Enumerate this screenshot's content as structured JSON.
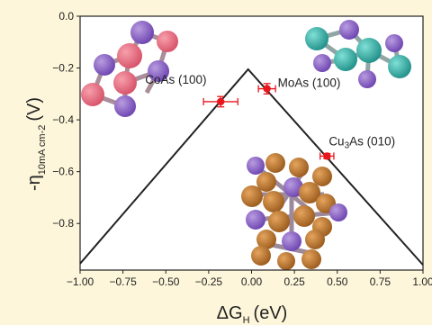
{
  "chart_data": {
    "type": "scatter",
    "xlabel": "ΔG",
    "xlabel_sub": "H",
    "xlabel_unit": "(eV)",
    "ylabel_prefix": "-η",
    "ylabel_sub": "10mA cm-2",
    "ylabel_unit": "(V)",
    "xlim": [
      -1.0,
      1.0
    ],
    "ylim": [
      -0.98,
      0.0
    ],
    "x_ticks": [
      "−1.00",
      "−0.75",
      "−0.50",
      "−0.25",
      "0.00",
      "0.25",
      "0.50",
      "0.75",
      "1.00"
    ],
    "x_tick_values": [
      -1.0,
      -0.75,
      -0.5,
      -0.25,
      0.0,
      0.25,
      0.5,
      0.75,
      1.0
    ],
    "y_ticks": [
      "0.0",
      "−0.2",
      "−0.4",
      "−0.6",
      "−0.8"
    ],
    "y_tick_values": [
      0.0,
      -0.2,
      -0.4,
      -0.6,
      -0.8
    ],
    "volcano_line": {
      "x": [
        -1.0,
        -0.02,
        1.0
      ],
      "y": [
        -0.955,
        -0.205,
        -0.96
      ],
      "color": "#222222"
    },
    "points": [
      {
        "label": "CoAs (100)",
        "label_main": "CoAs (100)",
        "label_sub": "",
        "label_rest": "",
        "x": -0.18,
        "y": -0.33,
        "xerr": 0.1,
        "yerr": 0.02
      },
      {
        "label": "MoAs (100)",
        "label_main": "MoAs (100)",
        "label_sub": "",
        "label_rest": "",
        "x": 0.09,
        "y": -0.28,
        "xerr": 0.05,
        "yerr": 0.02
      },
      {
        "label": "Cu3As (010)",
        "label_main": "Cu",
        "label_sub": "3",
        "label_rest": "As (010)",
        "x": 0.44,
        "y": -0.54,
        "xerr": 0.04,
        "yerr": 0.01
      }
    ],
    "point_color": "#e8161c",
    "grid": false
  }
}
